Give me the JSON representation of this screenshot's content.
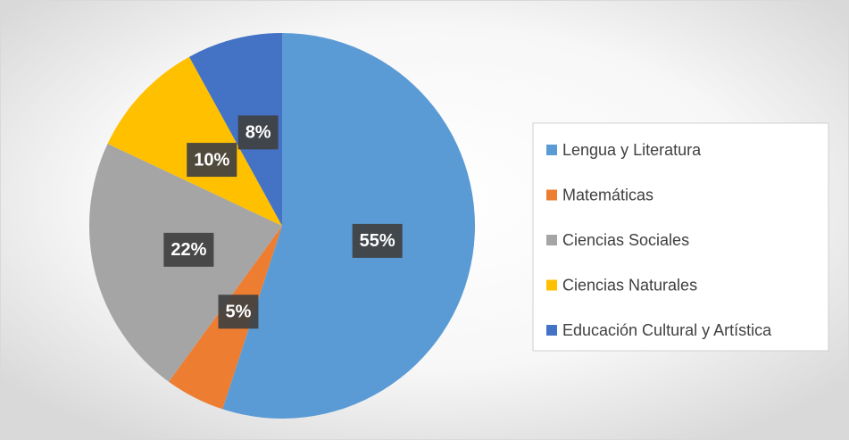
{
  "chart_data": {
    "type": "pie",
    "categories": [
      "Lengua y Literatura",
      "Matemáticas",
      "Ciencias Sociales",
      "Ciencias Naturales",
      "Educación Cultural y Artística"
    ],
    "values": [
      55,
      5,
      22,
      10,
      8
    ],
    "value_labels": [
      "55%",
      "5%",
      "22%",
      "10%",
      "8%"
    ],
    "colors": [
      "#5b9bd5",
      "#ed7d31",
      "#a5a5a5",
      "#ffc000",
      "#4472c4"
    ],
    "legend": "right"
  }
}
